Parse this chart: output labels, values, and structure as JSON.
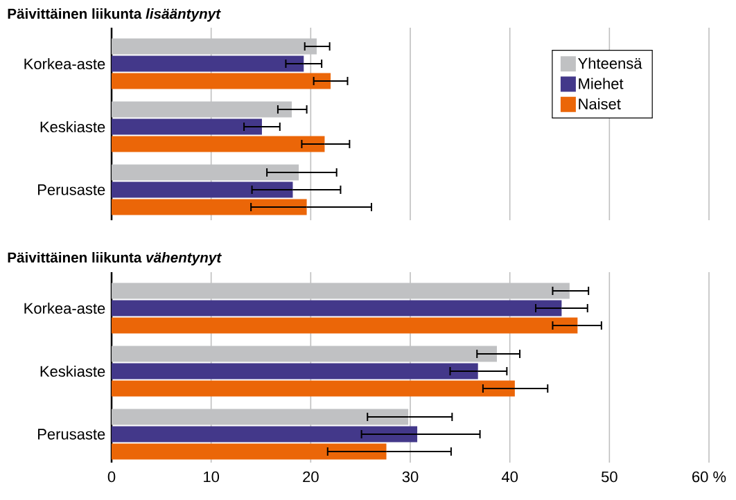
{
  "chart_data": [
    {
      "type": "bar",
      "orientation": "horizontal",
      "title": "Päivittäinen liikunta *lisääntynyt*",
      "categories": [
        "Korkea-aste",
        "Keskiaste",
        "Perusaste"
      ],
      "xlim": [
        0,
        60
      ],
      "xticks": [
        0,
        10,
        20,
        30,
        40,
        50,
        60
      ],
      "grid": "x",
      "legend": "top right",
      "tick_labels": "y",
      "series": [
        {
          "name": "Yhteensä",
          "color": "#c0c1c3",
          "values": [
            20.6,
            18.1,
            18.8
          ],
          "errors": [
            [
              19.4,
              21.9
            ],
            [
              16.7,
              19.6
            ],
            [
              15.6,
              22.6
            ]
          ]
        },
        {
          "name": "Miehet",
          "color": "#43388a",
          "values": [
            19.3,
            15.1,
            18.2
          ],
          "errors": [
            [
              17.5,
              21.1
            ],
            [
              13.3,
              16.9
            ],
            [
              14.1,
              23.0
            ]
          ]
        },
        {
          "name": "Naiset",
          "color": "#eb6608",
          "values": [
            22.0,
            21.4,
            19.6
          ],
          "errors": [
            [
              20.3,
              23.7
            ],
            [
              19.1,
              23.9
            ],
            [
              14.0,
              26.1
            ]
          ]
        }
      ]
    },
    {
      "type": "bar",
      "orientation": "horizontal",
      "title": "Päivittäinen liikunta *vähentynyt*",
      "categories": [
        "Korkea-aste",
        "Keskiaste",
        "Perusaste"
      ],
      "xlim": [
        0,
        60
      ],
      "xticks": [
        0,
        10,
        20,
        30,
        40,
        50,
        {
          "value": 60,
          "label": "60 %"
        }
      ],
      "grid": "x",
      "series": [
        {
          "color": "#c0c1c3",
          "values": [
            46.0,
            38.7,
            29.8
          ],
          "errors": [
            [
              44.3,
              47.9
            ],
            [
              36.7,
              41.0
            ],
            [
              25.7,
              34.2
            ]
          ]
        },
        {
          "color": "#43388a",
          "values": [
            45.2,
            36.8,
            30.7
          ],
          "errors": [
            [
              42.6,
              47.8
            ],
            [
              34.0,
              39.7
            ],
            [
              25.1,
              37.0
            ]
          ]
        },
        {
          "color": "#eb6608",
          "values": [
            46.8,
            40.5,
            27.6
          ],
          "errors": [
            [
              44.3,
              49.2
            ],
            [
              37.3,
              43.8
            ],
            [
              21.7,
              34.1
            ]
          ]
        }
      ]
    }
  ]
}
